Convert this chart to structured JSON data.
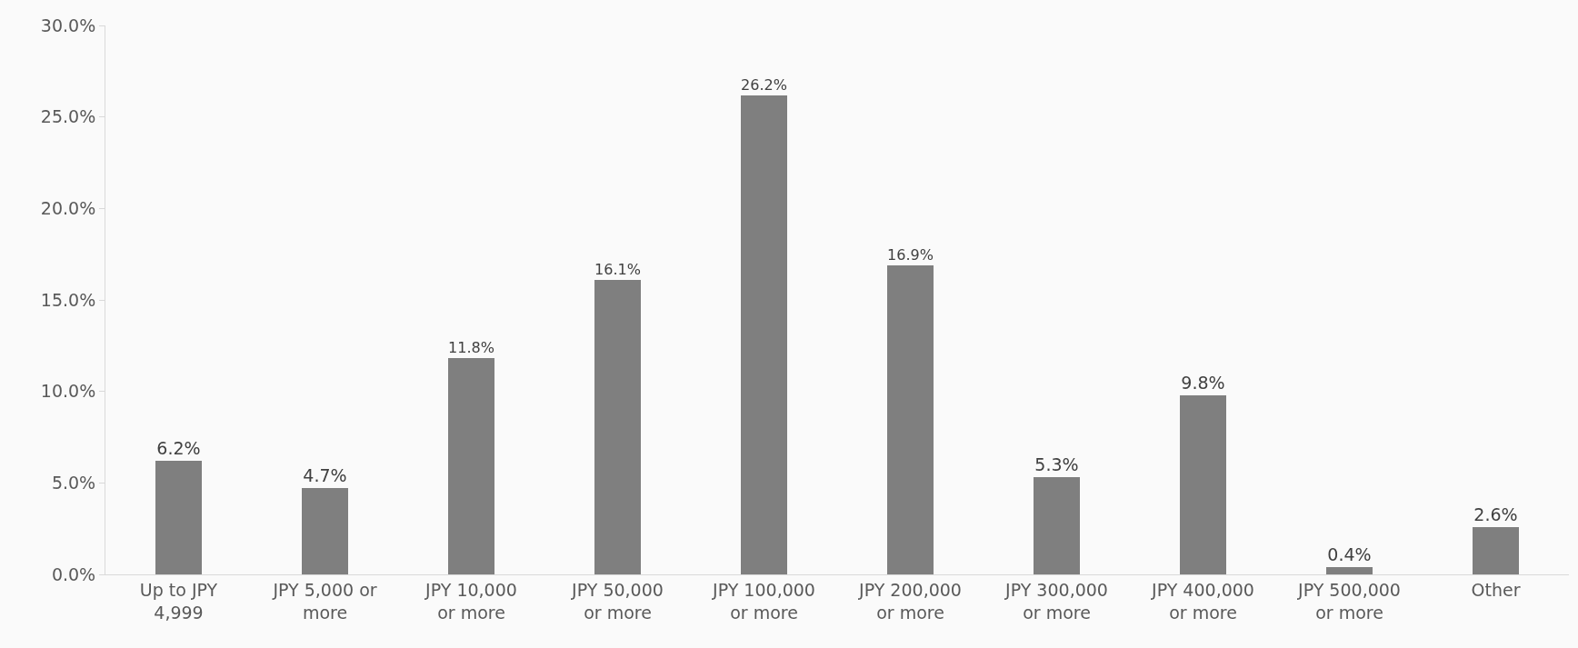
{
  "chart_data": {
    "type": "bar",
    "categories": [
      "Up to JPY 4,999",
      "JPY 5,000 or more",
      "JPY 10,000 or more",
      "JPY 50,000 or more",
      "JPY 100,000 or more",
      "JPY 200,000 or more",
      "JPY 300,000 or more",
      "JPY 400,000 or more",
      "JPY 500,000 or more",
      "Other"
    ],
    "values": [
      6.2,
      4.7,
      11.8,
      16.1,
      26.2,
      16.9,
      5.3,
      9.8,
      0.4,
      2.6
    ],
    "value_labels": [
      "6.2%",
      "4.7%",
      "11.8%",
      "16.1%",
      "26.2%",
      "16.9%",
      "5.3%",
      "9.8%",
      "0.4%",
      "2.6%"
    ],
    "color": "#7f7f7f",
    "ylim": [
      0,
      30
    ],
    "yticks": [
      {
        "value": 0,
        "label": "0.0%"
      },
      {
        "value": 5,
        "label": "5.0%"
      },
      {
        "value": 10,
        "label": "10.0%"
      },
      {
        "value": 15,
        "label": "15.0%"
      },
      {
        "value": 20,
        "label": "20.0%"
      },
      {
        "value": 25,
        "label": "25.0%"
      },
      {
        "value": 30,
        "label": "30.0%"
      }
    ],
    "grid": false,
    "legend": false
  }
}
